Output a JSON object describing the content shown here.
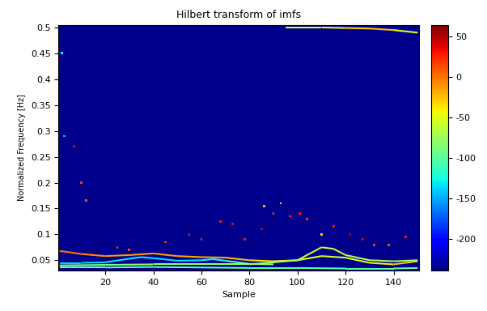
{
  "chart_data": {
    "type": "heatmap",
    "title": "Hilbert transform of imfs",
    "x_label": "Sample",
    "y_label": "Normalized Frequency [Hz]",
    "xlim": [
      0.5,
      150.5
    ],
    "ylim": [
      0.03,
      0.505
    ],
    "xticks": [
      20,
      40,
      60,
      80,
      100,
      120,
      140
    ],
    "yticks": [
      0.05,
      0.1,
      0.15,
      0.2,
      0.25,
      0.3,
      0.35,
      0.4,
      0.45,
      0.5
    ],
    "background": -235,
    "traces": [
      {
        "x": [
          1,
          10,
          20,
          30,
          40,
          50,
          60,
          70,
          80,
          90,
          100,
          110,
          120,
          130,
          140,
          150
        ],
        "y": [
          0.068,
          0.062,
          0.058,
          0.06,
          0.063,
          0.058,
          0.056,
          0.055,
          0.05,
          0.048,
          0.05,
          0.058,
          0.055,
          0.045,
          0.042,
          0.048
        ],
        "values": [
          5,
          -5,
          -10,
          -15,
          -10,
          -15,
          -20,
          -15,
          -30,
          -40,
          -50,
          -55,
          -60,
          -45,
          -30,
          -20
        ]
      },
      {
        "x": [
          1,
          10,
          20,
          30,
          35,
          40,
          50,
          60,
          65,
          70,
          80,
          90
        ],
        "y": [
          0.045,
          0.045,
          0.046,
          0.053,
          0.056,
          0.054,
          0.049,
          0.05,
          0.052,
          0.049,
          0.043,
          0.042
        ],
        "values": [
          -140,
          -140,
          -135,
          -130,
          -130,
          -135,
          -135,
          -130,
          -130,
          -120,
          -90,
          -70
        ]
      },
      {
        "x": [
          1,
          20,
          40,
          60,
          80,
          100,
          110,
          115,
          120,
          130,
          140,
          150
        ],
        "y": [
          0.04,
          0.041,
          0.042,
          0.042,
          0.042,
          0.05,
          0.075,
          0.072,
          0.06,
          0.05,
          0.048,
          0.05
        ],
        "values": [
          -90,
          -85,
          -80,
          -80,
          -75,
          -70,
          -60,
          -60,
          -65,
          -70,
          -75,
          -80
        ]
      },
      {
        "x": [
          1,
          20,
          40,
          60,
          80,
          100,
          120,
          140,
          150
        ],
        "y": [
          0.036,
          0.036,
          0.037,
          0.036,
          0.035,
          0.035,
          0.034,
          0.034,
          0.035
        ],
        "values": [
          -100,
          -100,
          -95,
          -95,
          -100,
          -100,
          -105,
          -100,
          -100
        ]
      },
      {
        "x": [
          95,
          110,
          120,
          130,
          140,
          150
        ],
        "y": [
          0.5,
          0.5,
          0.499,
          0.498,
          0.495,
          0.49
        ],
        "values": [
          -60,
          -50,
          -40,
          -30,
          -20,
          -80
        ]
      }
    ],
    "points": {
      "x": [
        7,
        10,
        12,
        3,
        2,
        68,
        73,
        90,
        97,
        101,
        104,
        86,
        93,
        85,
        115,
        122,
        127,
        132,
        138,
        145,
        55,
        60,
        25,
        30,
        45,
        78,
        110
      ],
      "y": [
        0.27,
        0.2,
        0.165,
        0.29,
        0.45,
        0.125,
        0.12,
        0.14,
        0.135,
        0.14,
        0.13,
        0.155,
        0.16,
        0.11,
        0.115,
        0.1,
        0.09,
        0.08,
        0.08,
        0.095,
        0.1,
        0.09,
        0.075,
        0.07,
        0.085,
        0.09,
        0.1
      ],
      "values": [
        40,
        20,
        10,
        -150,
        -130,
        30,
        35,
        20,
        25,
        30,
        20,
        -20,
        -40,
        40,
        30,
        40,
        30,
        20,
        15,
        30,
        30,
        25,
        20,
        15,
        20,
        30,
        -30
      ]
    },
    "colorbar_range": [
      -239,
      64
    ],
    "colorbar_ticks": [
      -200,
      -150,
      -100,
      -50,
      0,
      50
    ]
  }
}
